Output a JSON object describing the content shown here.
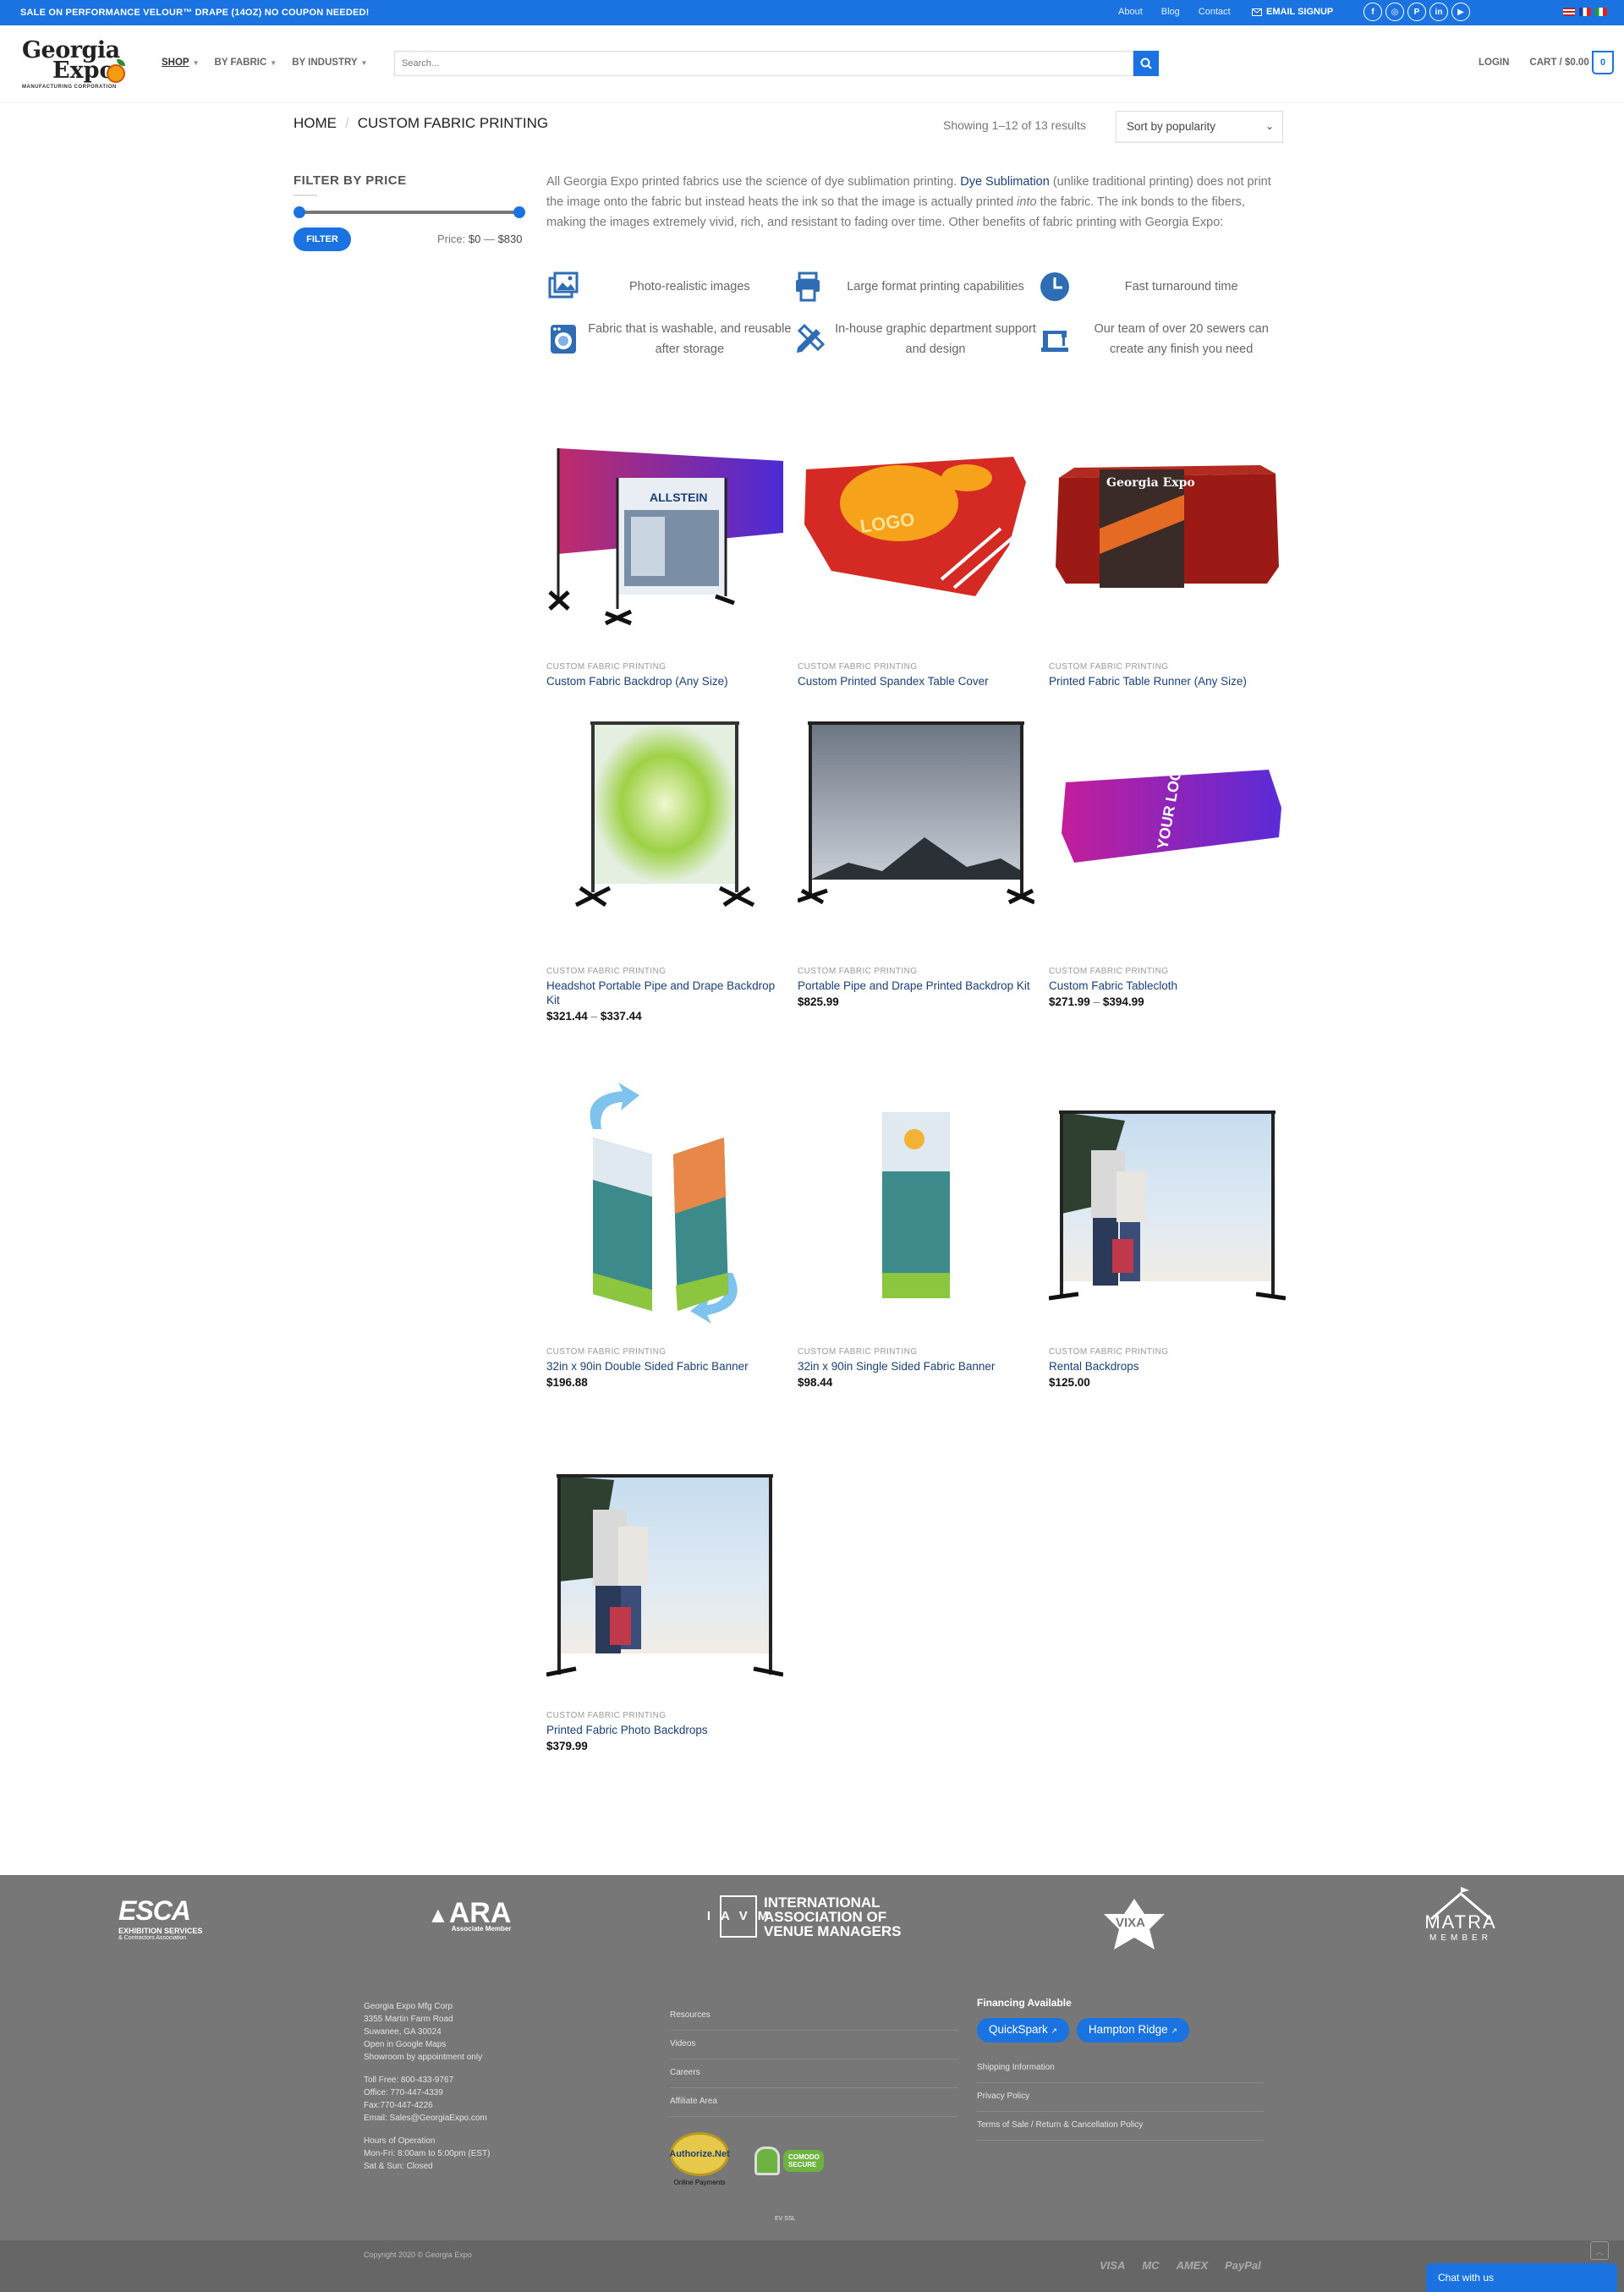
{
  "topbar": {
    "promo": "SALE ON PERFORMANCE VELOUR™ DRAPE (14OZ) NO COUPON NEEDED!",
    "links": [
      "About",
      "Blog",
      "Contact"
    ],
    "signup": "EMAIL SIGNUP",
    "socials": [
      "facebook-icon",
      "instagram-icon",
      "pinterest-icon",
      "linkedin-icon",
      "youtube-icon"
    ],
    "social_glyphs": [
      "f",
      "◎",
      "P",
      "in",
      "▶"
    ]
  },
  "header": {
    "logo_line1": "Georgia",
    "logo_line2": "Expo",
    "logo_sub": "MANUFACTURING CORPORATION",
    "nav": {
      "shop": "SHOP",
      "fabric": "BY FABRIC",
      "industry": "BY INDUSTRY"
    },
    "search_placeholder": "Search...",
    "login": "LOGIN",
    "cart": "CART / $0.00",
    "cart_count": "0"
  },
  "breadcrumb": {
    "home": "HOME",
    "current": "CUSTOM FABRIC PRINTING"
  },
  "results_text": "Showing 1–12 of 13 results",
  "sort_label": "Sort by popularity",
  "filter": {
    "title": "FILTER BY PRICE",
    "button": "FILTER",
    "price_prefix": "Price:",
    "price_min": "$0",
    "price_sep": "—",
    "price_max": "$830"
  },
  "intro": {
    "part1": "All Georgia Expo printed fabrics use the science of dye sublimation printing. ",
    "link": "Dye Sublimation",
    "part2": " (unlike traditional printing) does not print the image onto the fabric but instead heats the ink so that the image is actually printed ",
    "em": "into",
    "part3": " the fabric. The ink bonds to the fibers, making the images extremely vivid, rich, and resistant to fading over time. Other benefits of fabric printing with Georgia Expo:"
  },
  "features": [
    {
      "icon": "photo-icon",
      "text": "Photo-realistic images"
    },
    {
      "icon": "printer-icon",
      "text": "Large format printing capabilities"
    },
    {
      "icon": "clock-icon",
      "text": "Fast turnaround time"
    },
    {
      "icon": "washer-icon",
      "text": "Fabric that is washable, and reusable after storage"
    },
    {
      "icon": "design-tools-icon",
      "text": "In-house graphic department support and design"
    },
    {
      "icon": "sewing-machine-icon",
      "text": "Our team of over 20 sewers can create any finish you need"
    }
  ],
  "products": [
    {
      "category": "CUSTOM FABRIC PRINTING",
      "title": "Custom Fabric Backdrop (Any Size)",
      "price": ""
    },
    {
      "category": "CUSTOM FABRIC PRINTING",
      "title": "Custom Printed Spandex Table Cover",
      "price": ""
    },
    {
      "category": "CUSTOM FABRIC PRINTING",
      "title": "Printed Fabric Table Runner (Any Size)",
      "price": ""
    },
    {
      "category": "CUSTOM FABRIC PRINTING",
      "title": "Headshot Portable Pipe and Drape Backdrop Kit",
      "price": "$321.44",
      "price_to": "$337.44"
    },
    {
      "category": "CUSTOM FABRIC PRINTING",
      "title": "Portable Pipe and Drape Printed Backdrop Kit",
      "price": "$825.99"
    },
    {
      "category": "CUSTOM FABRIC PRINTING",
      "title": "Custom Fabric Tablecloth",
      "price": "$271.99",
      "price_to": "$394.99"
    },
    {
      "category": "CUSTOM FABRIC PRINTING",
      "title": "32in x 90in Double Sided Fabric Banner",
      "price": "$196.88"
    },
    {
      "category": "CUSTOM FABRIC PRINTING",
      "title": "32in x 90in Single Sided Fabric Banner",
      "price": "$98.44"
    },
    {
      "category": "CUSTOM FABRIC PRINTING",
      "title": "Rental Backdrops",
      "price": "$125.00"
    },
    {
      "category": "CUSTOM FABRIC PRINTING",
      "title": "Printed Fabric Photo Backdrops",
      "price": "$379.99"
    }
  ],
  "image_text": {
    "allstein": "ALLSTEIN",
    "logo": "LOGO",
    "runner_brand": "Georgia Expo",
    "your_logo": "YOUR LOGO & MESSAGE"
  },
  "associations": {
    "esca": "ESCA",
    "esca_sub1": "EXHIBITION SERVICES",
    "esca_sub2": "& Contractors Association",
    "ara": "ARA",
    "ara_sub": "Associate Member",
    "iavm_letters": "IAVM",
    "iavm1": "INTERNATIONAL",
    "iavm2": "ASSOCIATION OF",
    "iavm3": "VENUE MANAGERS",
    "vixa": "VIXA",
    "matra": "MATRA",
    "matra_sub": "MEMBER"
  },
  "footer": {
    "address": [
      "Georgia Expo Mfg Corp",
      "3355 Martin Farm Road",
      "Suwanee, GA 30024",
      " Open in Google Maps",
      "Showroom by appointment only"
    ],
    "contact": [
      "Toll Free: 800-433-9767",
      "Office: 770-447-4339",
      "Fax:770-447-4226",
      "Email: Sales@GeorgiaExpo.com"
    ],
    "hours": [
      "Hours of Operation",
      "Mon-Fri: 8:00am to 5:00pm (EST)",
      "Sat & Sun: Closed"
    ],
    "links": [
      "Resources",
      "Videos",
      "Careers",
      "Affiliate Area"
    ],
    "financing_title": "Financing Available",
    "financing": [
      "QuickSpark",
      "Hampton Ridge"
    ],
    "policies": [
      "Shipping Information",
      "Privacy Policy",
      "Terms of Sale / Return & Cancellation Policy"
    ],
    "authorize": "Authorize.Net",
    "authorize_sub": "Online Payments",
    "comodo": "COMODO SECURE",
    "ssl": "EV SSL",
    "copyright": "Copyright 2020 © Georgia Expo",
    "payments": [
      "VISA",
      "MC",
      "AMEX",
      "PayPal"
    ],
    "chat": "Chat with us"
  }
}
